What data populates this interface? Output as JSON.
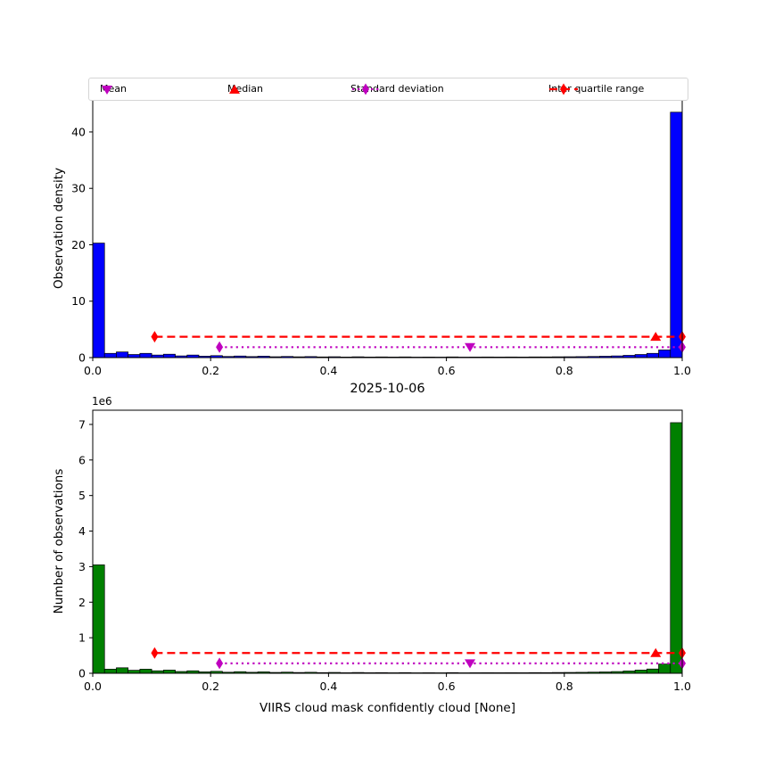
{
  "figure": {
    "title": "2025-10-06",
    "background": "#ffffff"
  },
  "legend": {
    "items": [
      {
        "label": "Mean",
        "marker": "triangle-down",
        "color": "#BF00BF"
      },
      {
        "label": "Median",
        "marker": "triangle-up",
        "color": "#FF0000"
      },
      {
        "label": "Standard deviation",
        "marker": "thin-diamond-dotted-line",
        "color": "#BF00BF"
      },
      {
        "label": "Inter quartile range",
        "marker": "thin-diamond-dashed-line",
        "color": "#FF0000"
      }
    ]
  },
  "chart_data": [
    {
      "type": "bar",
      "title": "",
      "xlabel": "",
      "ylabel": "Observation density",
      "bar_color": "#0000FF",
      "bar_edge_color": "#000000",
      "bin_start": 0.0,
      "bin_width": 0.02,
      "values": [
        20.3,
        0.75,
        1.0,
        0.55,
        0.75,
        0.45,
        0.6,
        0.3,
        0.45,
        0.25,
        0.35,
        0.2,
        0.28,
        0.18,
        0.25,
        0.15,
        0.2,
        0.14,
        0.18,
        0.12,
        0.15,
        0.1,
        0.14,
        0.1,
        0.12,
        0.1,
        0.12,
        0.09,
        0.1,
        0.09,
        0.12,
        0.09,
        0.1,
        0.11,
        0.1,
        0.11,
        0.1,
        0.12,
        0.12,
        0.14,
        0.15,
        0.17,
        0.2,
        0.24,
        0.3,
        0.4,
        0.55,
        0.75,
        1.35,
        43.5
      ],
      "xlim": [
        0.0,
        1.0
      ],
      "ylim": [
        0,
        46
      ],
      "xticks": [
        0.0,
        0.2,
        0.4,
        0.6,
        0.8,
        1.0
      ],
      "xtick_labels": [
        "0.0",
        "0.2",
        "0.4",
        "0.6",
        "0.8",
        "1.0"
      ],
      "yticks": [
        0,
        10,
        20,
        30,
        40
      ],
      "ytick_labels": [
        "0",
        "10",
        "20",
        "30",
        "40"
      ],
      "grid": false,
      "legend_position": "above-axes",
      "stats": {
        "inter_quartile_range": {
          "y": 3.7,
          "x1": 0.105,
          "x2": 1.0,
          "color": "#FF0000",
          "style": "dashed"
        },
        "standard_deviation": {
          "y": 1.85,
          "x1": 0.215,
          "x2": 1.0,
          "color": "#BF00BF",
          "style": "dotted"
        },
        "mean": {
          "x": 0.64,
          "y": 1.85,
          "color": "#BF00BF",
          "marker": "triangle-down"
        },
        "median": {
          "x": 0.955,
          "y": 3.7,
          "color": "#FF0000",
          "marker": "triangle-up"
        }
      }
    },
    {
      "type": "bar",
      "title": "2025-10-06",
      "xlabel": "VIIRS cloud mask confidently cloud [None]",
      "ylabel": "Number of observations",
      "offset_label": "1e6",
      "bar_color": "#008000",
      "bar_edge_color": "#000000",
      "bin_start": 0.0,
      "bin_width": 0.02,
      "values_unit": "1e6",
      "values": [
        3.05,
        0.115,
        0.155,
        0.085,
        0.115,
        0.07,
        0.09,
        0.05,
        0.07,
        0.04,
        0.055,
        0.03,
        0.045,
        0.028,
        0.04,
        0.024,
        0.032,
        0.022,
        0.028,
        0.019,
        0.024,
        0.016,
        0.022,
        0.016,
        0.019,
        0.015,
        0.019,
        0.014,
        0.016,
        0.014,
        0.019,
        0.014,
        0.016,
        0.017,
        0.016,
        0.017,
        0.016,
        0.019,
        0.019,
        0.022,
        0.024,
        0.027,
        0.032,
        0.038,
        0.048,
        0.065,
        0.09,
        0.12,
        0.26,
        7.05
      ],
      "xlim": [
        0.0,
        1.0
      ],
      "ylim": [
        0,
        7.4
      ],
      "xticks": [
        0.0,
        0.2,
        0.4,
        0.6,
        0.8,
        1.0
      ],
      "xtick_labels": [
        "0.0",
        "0.2",
        "0.4",
        "0.6",
        "0.8",
        "1.0"
      ],
      "yticks": [
        0,
        1,
        2,
        3,
        4,
        5,
        6,
        7
      ],
      "ytick_labels": [
        "0",
        "1",
        "2",
        "3",
        "4",
        "5",
        "6",
        "7"
      ],
      "grid": false,
      "stats": {
        "inter_quartile_range": {
          "y": 0.57,
          "x1": 0.105,
          "x2": 1.0,
          "color": "#FF0000",
          "style": "dashed"
        },
        "standard_deviation": {
          "y": 0.28,
          "x1": 0.215,
          "x2": 1.0,
          "color": "#BF00BF",
          "style": "dotted"
        },
        "mean": {
          "x": 0.64,
          "y": 0.28,
          "color": "#BF00BF",
          "marker": "triangle-down"
        },
        "median": {
          "x": 0.955,
          "y": 0.57,
          "color": "#FF0000",
          "marker": "triangle-up"
        }
      }
    }
  ]
}
